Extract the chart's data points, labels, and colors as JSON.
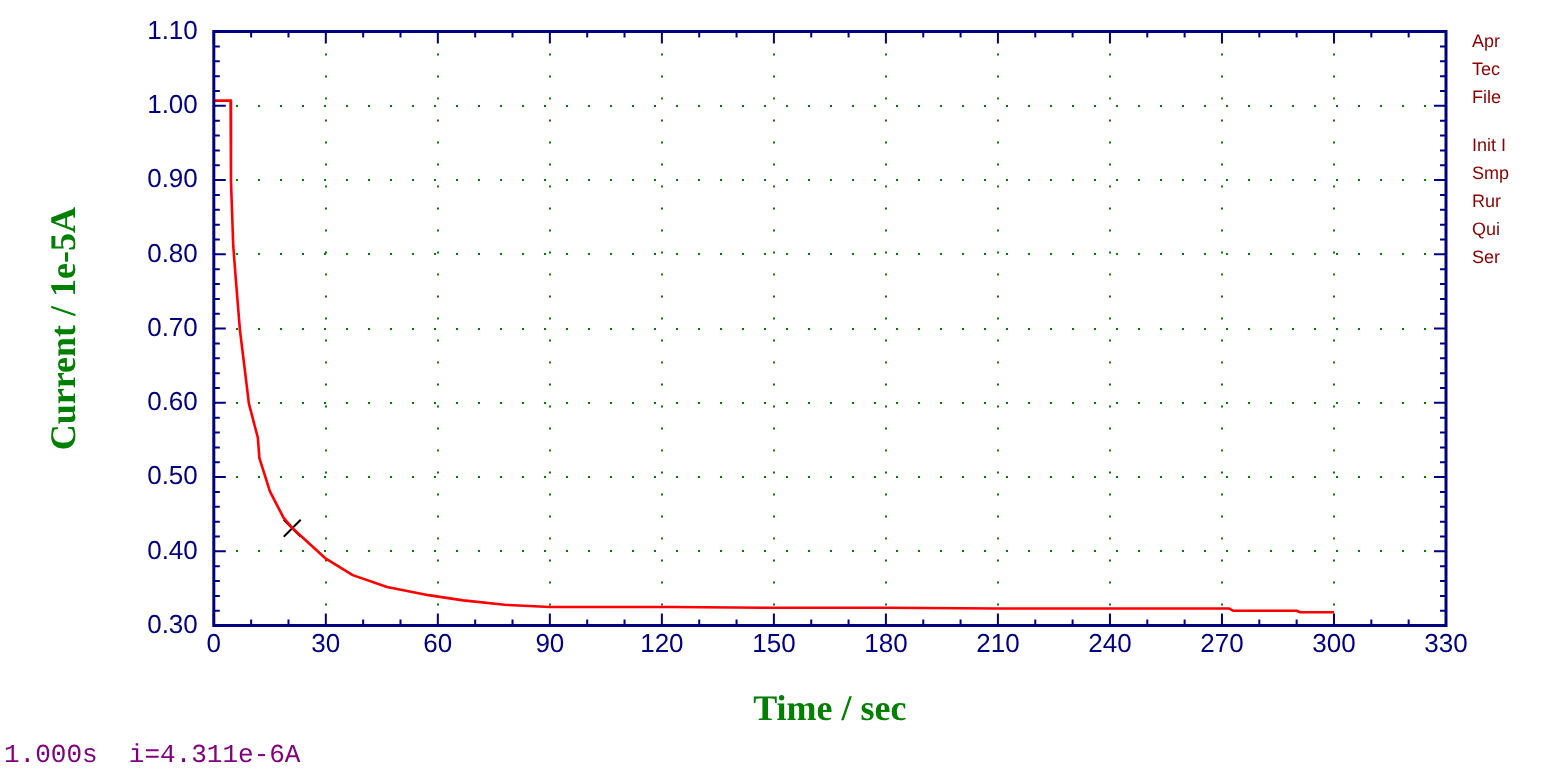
{
  "chart_data": {
    "type": "line",
    "xlabel": "Time / sec",
    "ylabel": "Current / 1e-5A",
    "x": [
      0,
      4.5,
      4.6,
      5.2,
      5.9,
      7.0,
      8.1,
      9.4,
      11.8,
      12.2,
      15,
      18.7,
      21.3,
      29.8,
      37.2,
      46.4,
      57.5,
      66.8,
      77.9,
      90,
      123,
      150,
      180,
      210,
      240,
      272,
      273,
      290,
      291,
      300
    ],
    "series": [
      {
        "color": "#ff0000",
        "values": [
          1.007,
          1.007,
          0.899,
          0.812,
          0.766,
          0.698,
          0.653,
          0.599,
          0.553,
          0.526,
          0.481,
          0.445,
          0.43,
          0.391,
          0.368,
          0.352,
          0.341,
          0.334,
          0.328,
          0.325,
          0.325,
          0.324,
          0.324,
          0.323,
          0.323,
          0.323,
          0.32,
          0.32,
          0.318,
          0.318
        ]
      },
      {
        "type": "scatter",
        "marker": "cross",
        "color": "#000000",
        "x": [
          21
        ],
        "values": [
          0.4311
        ]
      }
    ],
    "xlim": [
      0,
      330
    ],
    "xticks": [
      0,
      30,
      60,
      90,
      120,
      150,
      180,
      210,
      240,
      270,
      300,
      330
    ],
    "ylim": [
      0.3,
      1.1
    ],
    "yticks": [
      {
        "value": 0.3,
        "label": "0.30"
      },
      {
        "value": 0.4,
        "label": "0.40"
      },
      {
        "value": 0.5,
        "label": "0.50"
      },
      {
        "value": 0.6,
        "label": "0.60"
      },
      {
        "value": 0.7,
        "label": "0.70"
      },
      {
        "value": 0.8,
        "label": "0.80"
      },
      {
        "value": 0.9,
        "label": "0.90"
      },
      {
        "value": 1.0,
        "label": "1.00"
      },
      {
        "value": 1.1,
        "label": "1.10"
      }
    ],
    "grid": true,
    "legend": false,
    "marker": "none",
    "line_style": "solid",
    "annotations": [
      "1.000s  i=4.311e-6A",
      "Apr",
      "Tec",
      "File",
      "Init I",
      "Smp",
      "Rur",
      "Qui",
      "Ser"
    ]
  }
}
